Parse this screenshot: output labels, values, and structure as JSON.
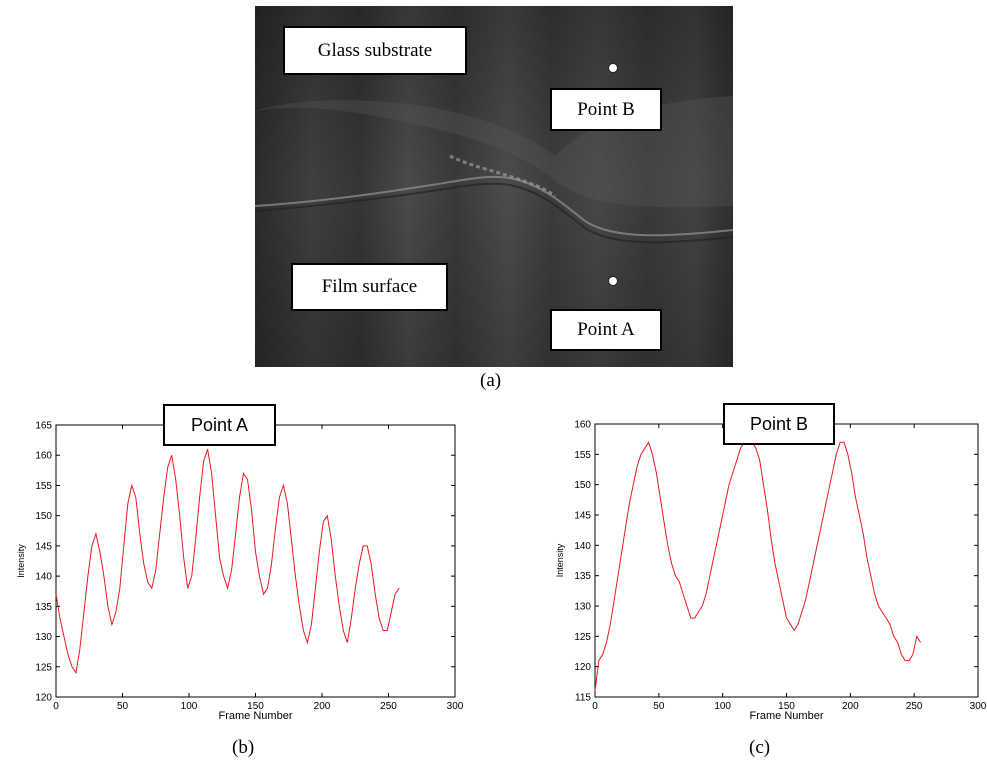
{
  "figure": {
    "captions": {
      "a": "(a)",
      "b": "(b)",
      "c": "(c)"
    },
    "photo": {
      "labels": {
        "glass": "Glass substrate",
        "film": "Film surface",
        "point_a": "Point A",
        "point_b": "Point B"
      }
    }
  },
  "chart_data": [
    {
      "type": "line",
      "title": "Point A",
      "xlabel": "Frame Number",
      "ylabel": "Intensity",
      "xlim": [
        0,
        300
      ],
      "ylim": [
        120,
        165
      ],
      "xticks": [
        "0",
        "50",
        "100",
        "150",
        "200",
        "250",
        "300"
      ],
      "yticks": [
        "120",
        "125",
        "130",
        "135",
        "140",
        "145",
        "150",
        "155",
        "160",
        "165"
      ],
      "color": "#e8191f",
      "series": [
        {
          "x": [
            0,
            3,
            6,
            9,
            12,
            15,
            18,
            21,
            24,
            27,
            30,
            33,
            36,
            39,
            42,
            45,
            48,
            51,
            54,
            57,
            60,
            63,
            66,
            69,
            72,
            75,
            78,
            81,
            84,
            87,
            90,
            93,
            96,
            99,
            102,
            105,
            108,
            111,
            114,
            117,
            120,
            123,
            126,
            129,
            132,
            135,
            138,
            141,
            144,
            147,
            150,
            153,
            156,
            159,
            162,
            165,
            168,
            171,
            174,
            177,
            180,
            183,
            186,
            189,
            192,
            195,
            198,
            201,
            204,
            207,
            210,
            213,
            216,
            219,
            222,
            225,
            228,
            231,
            234,
            237,
            240,
            243,
            246,
            249,
            252,
            255,
            258
          ],
          "y": [
            137,
            133,
            130,
            127,
            125,
            124,
            128,
            134,
            140,
            145,
            147,
            144,
            140,
            135,
            132,
            134,
            138,
            145,
            152,
            155,
            153,
            147,
            142,
            139,
            138,
            141,
            147,
            153,
            158,
            160,
            156,
            150,
            143,
            138,
            140,
            146,
            153,
            159,
            161,
            157,
            150,
            143,
            140,
            138,
            141,
            147,
            153,
            157,
            156,
            151,
            144,
            140,
            137,
            138,
            142,
            148,
            153,
            155,
            152,
            146,
            140,
            135,
            131,
            129,
            132,
            138,
            144,
            149,
            150,
            146,
            140,
            135,
            131,
            129,
            133,
            138,
            142,
            145,
            145,
            142,
            137,
            133,
            131,
            131,
            134,
            137,
            138
          ]
        }
      ]
    },
    {
      "type": "line",
      "title": "Point B",
      "xlabel": "Frame Number",
      "ylabel": "Intensity",
      "xlim": [
        0,
        300
      ],
      "ylim": [
        115,
        160
      ],
      "xticks": [
        "0",
        "50",
        "100",
        "150",
        "200",
        "250",
        "300"
      ],
      "yticks": [
        "115",
        "120",
        "125",
        "130",
        "135",
        "140",
        "145",
        "150",
        "155",
        "160"
      ],
      "color": "#e8191f",
      "series": [
        {
          "x": [
            0,
            3,
            6,
            9,
            12,
            15,
            18,
            21,
            24,
            27,
            30,
            33,
            36,
            39,
            42,
            45,
            48,
            51,
            54,
            57,
            60,
            63,
            66,
            69,
            72,
            75,
            78,
            81,
            84,
            87,
            90,
            93,
            96,
            99,
            102,
            105,
            108,
            111,
            114,
            117,
            120,
            123,
            126,
            129,
            132,
            135,
            138,
            141,
            144,
            147,
            150,
            153,
            156,
            159,
            162,
            165,
            168,
            171,
            174,
            177,
            180,
            183,
            186,
            189,
            192,
            195,
            198,
            201,
            204,
            207,
            210,
            213,
            216,
            219,
            222,
            225,
            228,
            231,
            234,
            237,
            240,
            243,
            246,
            249,
            252,
            255
          ],
          "y": [
            116,
            121,
            122,
            124,
            127,
            131,
            135,
            139,
            143,
            147,
            150,
            153,
            155,
            156,
            157,
            155,
            152,
            148,
            144,
            140,
            137,
            135,
            134,
            132,
            130,
            128,
            128,
            129,
            130,
            132,
            135,
            138,
            141,
            144,
            147,
            150,
            152,
            154,
            156,
            157,
            157,
            157,
            156,
            154,
            150,
            146,
            141,
            137,
            134,
            131,
            128,
            127,
            126,
            127,
            129,
            131,
            134,
            137,
            140,
            143,
            146,
            149,
            152,
            155,
            157,
            157,
            155,
            152,
            148,
            145,
            142,
            138,
            135,
            132,
            130,
            129,
            128,
            127,
            125,
            124,
            122,
            121,
            121,
            122,
            125,
            124
          ]
        }
      ]
    }
  ]
}
